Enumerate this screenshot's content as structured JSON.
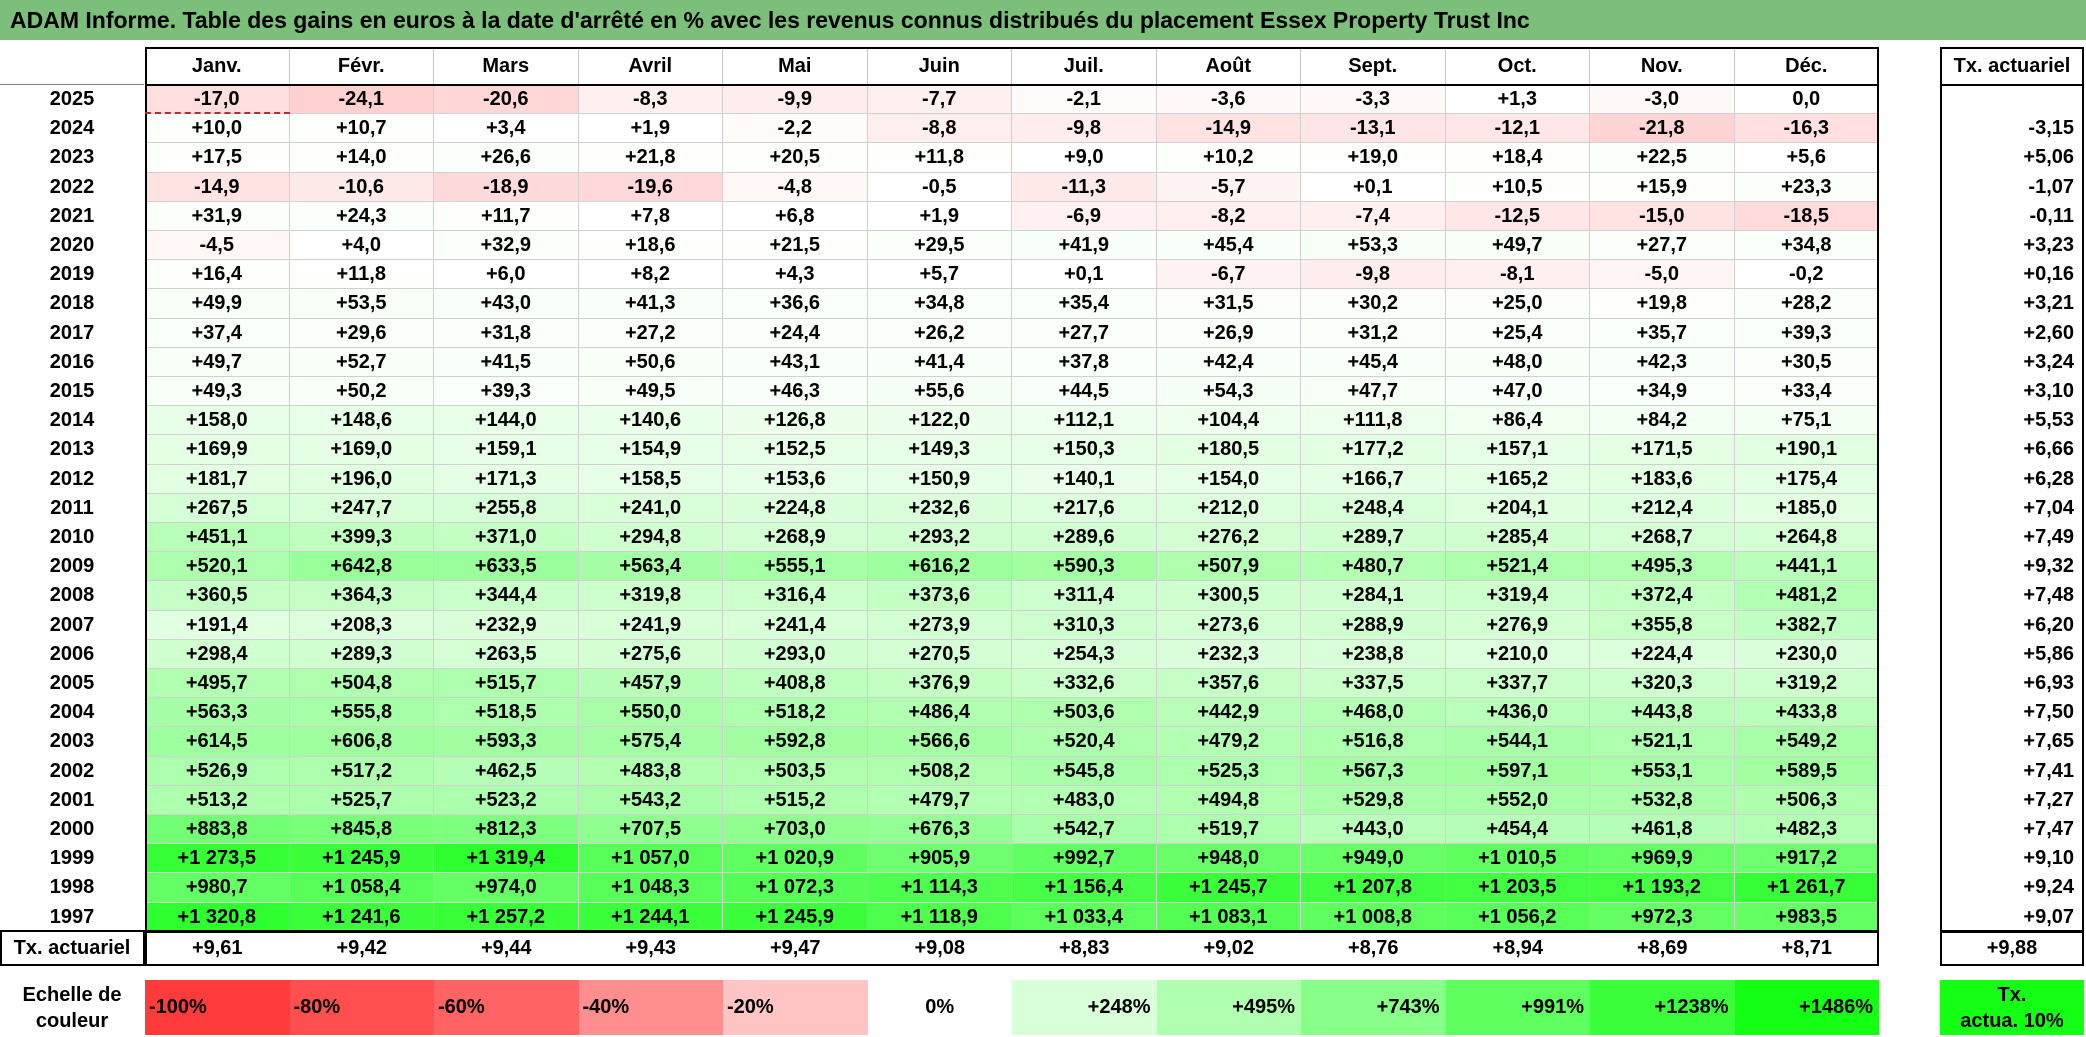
{
  "title": "ADAM Informe. Table des gains en euros à la date d'arrêté en % avec les revenus connus distribués du placement Essex Property Trust Inc",
  "months": [
    "Janv.",
    "Févr.",
    "Mars",
    "Avril",
    "Mai",
    "Juin",
    "Juil.",
    "Août",
    "Sept.",
    "Oct.",
    "Nov.",
    "Déc."
  ],
  "tx_header": "Tx. actuariel",
  "rows": [
    {
      "year": "2025",
      "values": [
        "-17,0",
        "-24,1",
        "-20,6",
        "-8,3",
        "-9,9",
        "-7,7",
        "-2,1",
        "-3,6",
        "-3,3",
        "+1,3",
        "-3,0",
        "0,0"
      ],
      "tx": ""
    },
    {
      "year": "2024",
      "values": [
        "+10,0",
        "+10,7",
        "+3,4",
        "+1,9",
        "-2,2",
        "-8,8",
        "-9,8",
        "-14,9",
        "-13,1",
        "-12,1",
        "-21,8",
        "-16,3"
      ],
      "tx": "-3,15"
    },
    {
      "year": "2023",
      "values": [
        "+17,5",
        "+14,0",
        "+26,6",
        "+21,8",
        "+20,5",
        "+11,8",
        "+9,0",
        "+10,2",
        "+19,0",
        "+18,4",
        "+22,5",
        "+5,6"
      ],
      "tx": "+5,06"
    },
    {
      "year": "2022",
      "values": [
        "-14,9",
        "-10,6",
        "-18,9",
        "-19,6",
        "-4,8",
        "-0,5",
        "-11,3",
        "-5,7",
        "+0,1",
        "+10,5",
        "+15,9",
        "+23,3"
      ],
      "tx": "-1,07"
    },
    {
      "year": "2021",
      "values": [
        "+31,9",
        "+24,3",
        "+11,7",
        "+7,8",
        "+6,8",
        "+1,9",
        "-6,9",
        "-8,2",
        "-7,4",
        "-12,5",
        "-15,0",
        "-18,5"
      ],
      "tx": "-0,11"
    },
    {
      "year": "2020",
      "values": [
        "-4,5",
        "+4,0",
        "+32,9",
        "+18,6",
        "+21,5",
        "+29,5",
        "+41,9",
        "+45,4",
        "+53,3",
        "+49,7",
        "+27,7",
        "+34,8"
      ],
      "tx": "+3,23"
    },
    {
      "year": "2019",
      "values": [
        "+16,4",
        "+11,8",
        "+6,0",
        "+8,2",
        "+4,3",
        "+5,7",
        "+0,1",
        "-6,7",
        "-9,8",
        "-8,1",
        "-5,0",
        "-0,2"
      ],
      "tx": "+0,16"
    },
    {
      "year": "2018",
      "values": [
        "+49,9",
        "+53,5",
        "+43,0",
        "+41,3",
        "+36,6",
        "+34,8",
        "+35,4",
        "+31,5",
        "+30,2",
        "+25,0",
        "+19,8",
        "+28,2"
      ],
      "tx": "+3,21"
    },
    {
      "year": "2017",
      "values": [
        "+37,4",
        "+29,6",
        "+31,8",
        "+27,2",
        "+24,4",
        "+26,2",
        "+27,7",
        "+26,9",
        "+31,2",
        "+25,4",
        "+35,7",
        "+39,3"
      ],
      "tx": "+2,60"
    },
    {
      "year": "2016",
      "values": [
        "+49,7",
        "+52,7",
        "+41,5",
        "+50,6",
        "+43,1",
        "+41,4",
        "+37,8",
        "+42,4",
        "+45,4",
        "+48,0",
        "+42,3",
        "+30,5"
      ],
      "tx": "+3,24"
    },
    {
      "year": "2015",
      "values": [
        "+49,3",
        "+50,2",
        "+39,3",
        "+49,5",
        "+46,3",
        "+55,6",
        "+44,5",
        "+54,3",
        "+47,7",
        "+47,0",
        "+34,9",
        "+33,4"
      ],
      "tx": "+3,10"
    },
    {
      "year": "2014",
      "values": [
        "+158,0",
        "+148,6",
        "+144,0",
        "+140,6",
        "+126,8",
        "+122,0",
        "+112,1",
        "+104,4",
        "+111,8",
        "+86,4",
        "+84,2",
        "+75,1"
      ],
      "tx": "+5,53"
    },
    {
      "year": "2013",
      "values": [
        "+169,9",
        "+169,0",
        "+159,1",
        "+154,9",
        "+152,5",
        "+149,3",
        "+150,3",
        "+180,5",
        "+177,2",
        "+157,1",
        "+171,5",
        "+190,1"
      ],
      "tx": "+6,66"
    },
    {
      "year": "2012",
      "values": [
        "+181,7",
        "+196,0",
        "+171,3",
        "+158,5",
        "+153,6",
        "+150,9",
        "+140,1",
        "+154,0",
        "+166,7",
        "+165,2",
        "+183,6",
        "+175,4"
      ],
      "tx": "+6,28"
    },
    {
      "year": "2011",
      "values": [
        "+267,5",
        "+247,7",
        "+255,8",
        "+241,0",
        "+224,8",
        "+232,6",
        "+217,6",
        "+212,0",
        "+248,4",
        "+204,1",
        "+212,4",
        "+185,0"
      ],
      "tx": "+7,04"
    },
    {
      "year": "2010",
      "values": [
        "+451,1",
        "+399,3",
        "+371,0",
        "+294,8",
        "+268,9",
        "+293,2",
        "+289,6",
        "+276,2",
        "+289,7",
        "+285,4",
        "+268,7",
        "+264,8"
      ],
      "tx": "+7,49"
    },
    {
      "year": "2009",
      "values": [
        "+520,1",
        "+642,8",
        "+633,5",
        "+563,4",
        "+555,1",
        "+616,2",
        "+590,3",
        "+507,9",
        "+480,7",
        "+521,4",
        "+495,3",
        "+441,1"
      ],
      "tx": "+9,32"
    },
    {
      "year": "2008",
      "values": [
        "+360,5",
        "+364,3",
        "+344,4",
        "+319,8",
        "+316,4",
        "+373,6",
        "+311,4",
        "+300,5",
        "+284,1",
        "+319,4",
        "+372,4",
        "+481,2"
      ],
      "tx": "+7,48"
    },
    {
      "year": "2007",
      "values": [
        "+191,4",
        "+208,3",
        "+232,9",
        "+241,9",
        "+241,4",
        "+273,9",
        "+310,3",
        "+273,6",
        "+288,9",
        "+276,9",
        "+355,8",
        "+382,7"
      ],
      "tx": "+6,20"
    },
    {
      "year": "2006",
      "values": [
        "+298,4",
        "+289,3",
        "+263,5",
        "+275,6",
        "+293,0",
        "+270,5",
        "+254,3",
        "+232,3",
        "+238,8",
        "+210,0",
        "+224,4",
        "+230,0"
      ],
      "tx": "+5,86"
    },
    {
      "year": "2005",
      "values": [
        "+495,7",
        "+504,8",
        "+515,7",
        "+457,9",
        "+408,8",
        "+376,9",
        "+332,6",
        "+357,6",
        "+337,5",
        "+337,7",
        "+320,3",
        "+319,2"
      ],
      "tx": "+6,93"
    },
    {
      "year": "2004",
      "values": [
        "+563,3",
        "+555,8",
        "+518,5",
        "+550,0",
        "+518,2",
        "+486,4",
        "+503,6",
        "+442,9",
        "+468,0",
        "+436,0",
        "+443,8",
        "+433,8"
      ],
      "tx": "+7,50"
    },
    {
      "year": "2003",
      "values": [
        "+614,5",
        "+606,8",
        "+593,3",
        "+575,4",
        "+592,8",
        "+566,6",
        "+520,4",
        "+479,2",
        "+516,8",
        "+544,1",
        "+521,1",
        "+549,2"
      ],
      "tx": "+7,65"
    },
    {
      "year": "2002",
      "values": [
        "+526,9",
        "+517,2",
        "+462,5",
        "+483,8",
        "+503,5",
        "+508,2",
        "+545,8",
        "+525,3",
        "+567,3",
        "+597,1",
        "+553,1",
        "+589,5"
      ],
      "tx": "+7,41"
    },
    {
      "year": "2001",
      "values": [
        "+513,2",
        "+525,7",
        "+523,2",
        "+543,2",
        "+515,2",
        "+479,7",
        "+483,0",
        "+494,8",
        "+529,8",
        "+552,0",
        "+532,8",
        "+506,3"
      ],
      "tx": "+7,27"
    },
    {
      "year": "2000",
      "values": [
        "+883,8",
        "+845,8",
        "+812,3",
        "+707,5",
        "+703,0",
        "+676,3",
        "+542,7",
        "+519,7",
        "+443,0",
        "+454,4",
        "+461,8",
        "+482,3"
      ],
      "tx": "+7,47"
    },
    {
      "year": "1999",
      "values": [
        "+1 273,5",
        "+1 245,9",
        "+1 319,4",
        "+1 057,0",
        "+1 020,9",
        "+905,9",
        "+992,7",
        "+948,0",
        "+949,0",
        "+1 010,5",
        "+969,9",
        "+917,2"
      ],
      "tx": "+9,10"
    },
    {
      "year": "1998",
      "values": [
        "+980,7",
        "+1 058,4",
        "+974,0",
        "+1 048,3",
        "+1 072,3",
        "+1 114,3",
        "+1 156,4",
        "+1 245,7",
        "+1 207,8",
        "+1 203,5",
        "+1 193,2",
        "+1 261,7"
      ],
      "tx": "+9,24"
    },
    {
      "year": "1997",
      "values": [
        "+1 320,8",
        "+1 241,6",
        "+1 257,2",
        "+1 244,1",
        "+1 245,9",
        "+1 118,9",
        "+1 033,4",
        "+1 083,1",
        "+1 008,8",
        "+1 056,2",
        "+972,3",
        "+983,5"
      ],
      "tx": "+9,07"
    }
  ],
  "footer": {
    "label": "Tx. actuariel",
    "values": [
      "+9,61",
      "+9,42",
      "+9,44",
      "+9,43",
      "+9,47",
      "+9,08",
      "+8,83",
      "+9,02",
      "+8,76",
      "+8,94",
      "+8,69",
      "+8,71"
    ],
    "total": "+9,88"
  },
  "legend": {
    "label_line1": "Echelle de",
    "label_line2": "couleur",
    "items": [
      {
        "text": "-100%",
        "color": "#ff3b3b",
        "align": "left"
      },
      {
        "text": "-80%",
        "color": "#ff4f4f",
        "align": "left"
      },
      {
        "text": "-60%",
        "color": "#ff6363",
        "align": "left"
      },
      {
        "text": "-40%",
        "color": "#ff8f8f",
        "align": "left"
      },
      {
        "text": "-20%",
        "color": "#ffc4c4",
        "align": "left"
      },
      {
        "text": "0%",
        "color": "#ffffff",
        "align": "center"
      },
      {
        "text": "+248%",
        "color": "#d8ffd8",
        "align": "right"
      },
      {
        "text": "+495%",
        "color": "#b0ffb0",
        "align": "right"
      },
      {
        "text": "+743%",
        "color": "#88ff88",
        "align": "right"
      },
      {
        "text": "+991%",
        "color": "#60ff60",
        "align": "right"
      },
      {
        "text": "+1238%",
        "color": "#3cff3c",
        "align": "right"
      },
      {
        "text": "+1486%",
        "color": "#14ff14",
        "align": "right"
      }
    ],
    "rate_line1": "Tx.",
    "rate_line2": "actua. 10%",
    "rate_color": "#14ff14"
  },
  "colors": {
    "title_bg": "#7bbf7b",
    "negative_full": "#ff3b3b",
    "positive_full": "#14ff14",
    "neutral": "#ffffff"
  },
  "color_scale_max_pct": 1486
}
